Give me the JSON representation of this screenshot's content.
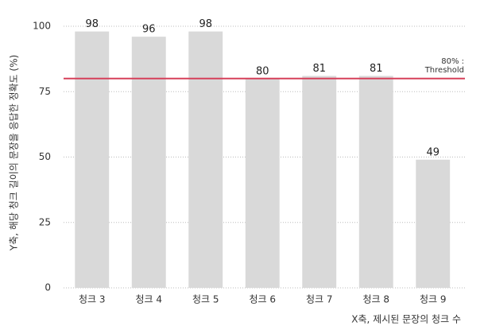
{
  "chart_data": {
    "type": "bar",
    "categories": [
      "청크 3",
      "청크 4",
      "청크 5",
      "청크 6",
      "청크 7",
      "청크 8",
      "청크 9"
    ],
    "values": [
      98,
      96,
      98,
      80,
      81,
      81,
      49
    ],
    "color": "#d9d9d9",
    "ylim": [
      0,
      100
    ],
    "yticks": [
      0,
      25,
      50,
      75,
      100
    ],
    "grid": true,
    "y_label": "Y축, 해당 청크 길이의 문장을 응답한 정확도 (%)",
    "x_label": "X축, 제시된 문장의 청크 수",
    "threshold": {
      "value": 80,
      "color": "#d6405a",
      "labels": [
        "80% :",
        "Threshold"
      ]
    }
  }
}
